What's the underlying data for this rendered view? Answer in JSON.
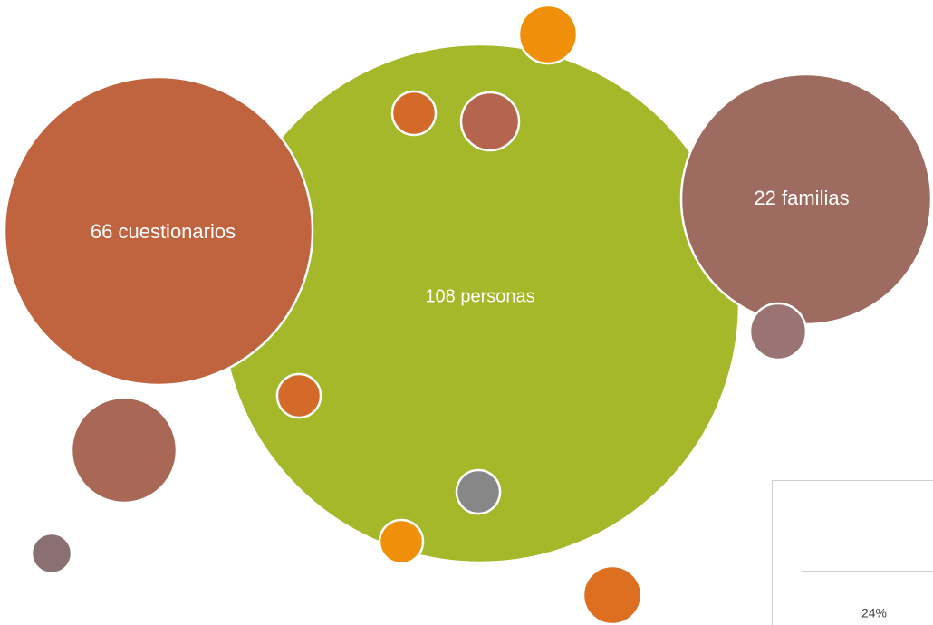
{
  "bubbles": [
    {
      "label": "66 cuestionarios"
    },
    {
      "label": "108 personas"
    },
    {
      "label": "22 familias"
    }
  ],
  "inset": {
    "label": "24%"
  }
}
